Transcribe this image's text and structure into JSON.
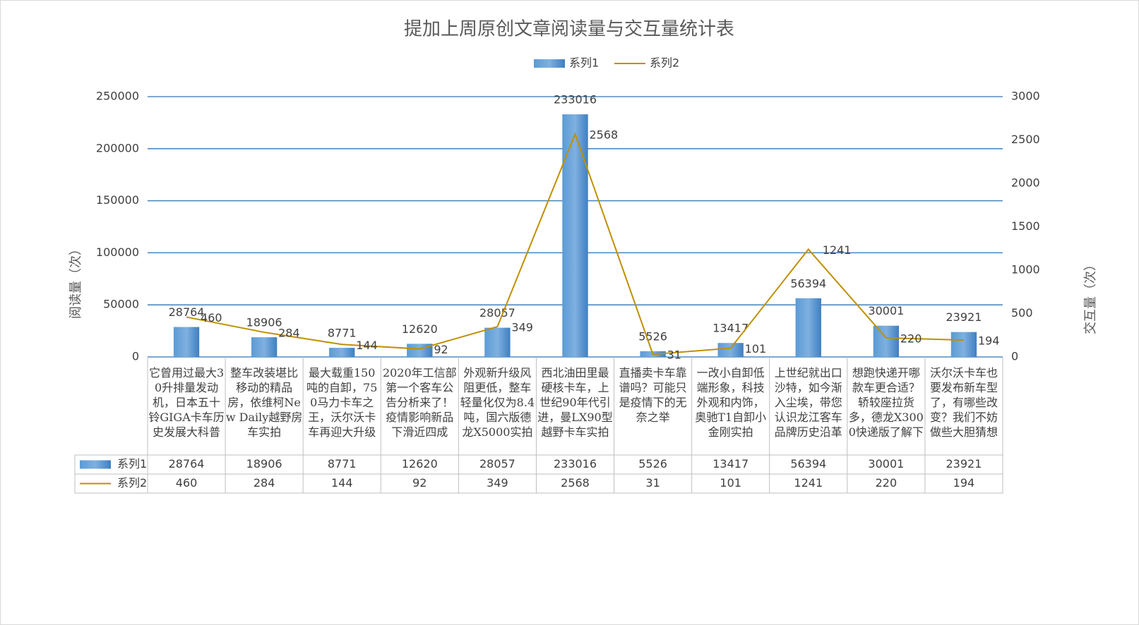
{
  "chart_data": {
    "type": "bar-line",
    "title": "提加上周原创文章阅读量与交互量统计表",
    "y_label": "阅读量（次）",
    "y2_label": "交互量（次）",
    "categories": [
      "它曾用过最大30升排量发动机，日本五十铃GIGA卡车历史发展大科普",
      "整车改装堪比移动的精品房，依维柯New Daily越野房车实拍",
      "最大载重150吨的自卸，750马力卡车之王，沃尔沃卡车再迎大升级",
      "2020年工信部第一个客车公告分析来了！疫情影响新品下滑近四成",
      "外观新升级风阻更低，整车轻量化仅为8.4吨，国六版德龙X5000实拍",
      "西北油田里最硬核卡车，上世纪90年代引进，曼LX90型越野卡车实拍",
      "直播卖卡车靠谱吗？可能只是疫情下的无奈之举",
      "一改小自卸低端形象，科技外观和内饰，奥驰T1自卸小金刚实拍",
      "上世纪就出口沙特，如今渐入尘埃，带您认识龙江客车品牌历史沿革",
      "想跑快递开哪款车更合适？轿较座拉货多，德龙X3000快递版了解下",
      "沃尔沃卡车也要发布新车型了，有哪些改变？我们不妨做些大胆猜想"
    ],
    "series": [
      {
        "name": "系列1",
        "type": "bar",
        "color": "#5b9bd5",
        "values": [
          28764,
          18906,
          8771,
          12620,
          28057,
          233016,
          5526,
          13417,
          56394,
          30001,
          23921
        ]
      },
      {
        "name": "系列2",
        "type": "line",
        "axis": "y2",
        "color": "#bf9000",
        "values": [
          460,
          284,
          144,
          92,
          349,
          2568,
          31,
          101,
          1241,
          220,
          194
        ]
      }
    ],
    "ylim": [
      0,
      250000
    ],
    "yticks": [
      0,
      50000,
      100000,
      150000,
      200000,
      250000
    ],
    "y2lim": [
      0,
      3000
    ],
    "y2ticks": [
      0,
      500,
      1000,
      1500,
      2000,
      2500,
      3000
    ],
    "grid": true,
    "legend": "top"
  }
}
